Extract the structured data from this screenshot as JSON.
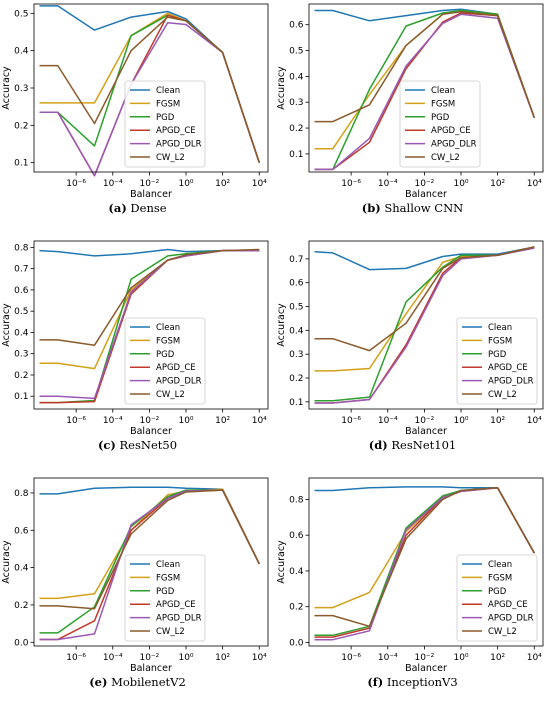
{
  "chart_data": [
    {
      "type": "line",
      "caption_label": "(a)",
      "caption_name": "Dense",
      "xlabel": "Balancer",
      "ylabel": "Accuracy",
      "x": [
        1e-08,
        1e-07,
        1e-05,
        0.001,
        0.1,
        1,
        100,
        10000
      ],
      "ylim": [
        0.075,
        0.525
      ],
      "yticks": [
        "0.1",
        "0.2",
        "0.3",
        "0.4",
        "0.5"
      ],
      "ytick_values": [
        0.1,
        0.2,
        0.3,
        0.4,
        0.5
      ],
      "legend_position": "lower-center",
      "series": [
        {
          "name": "Clean",
          "color": "#1f77b4",
          "values": [
            0.52,
            0.52,
            0.455,
            0.49,
            0.505,
            0.485,
            0.395,
            0.1
          ]
        },
        {
          "name": "FGSM",
          "color": "#d4a017",
          "values": [
            0.26,
            0.26,
            0.26,
            0.44,
            0.5,
            0.48,
            0.395,
            0.1
          ]
        },
        {
          "name": "PGD",
          "color": "#2ca02c",
          "values": [
            0.235,
            0.235,
            0.145,
            0.44,
            0.495,
            0.48,
            0.395,
            0.1
          ]
        },
        {
          "name": "APGD_CE",
          "color": "#c0392b",
          "values": [
            0.235,
            0.235,
            0.065,
            0.31,
            0.495,
            0.48,
            0.395,
            0.1
          ]
        },
        {
          "name": "APGD_DLR",
          "color": "#9b59b6",
          "values": [
            0.235,
            0.235,
            0.065,
            0.31,
            0.475,
            0.47,
            0.395,
            0.1
          ]
        },
        {
          "name": "CW_L2",
          "color": "#8b5a2b",
          "values": [
            0.36,
            0.36,
            0.205,
            0.4,
            0.49,
            0.48,
            0.395,
            0.1
          ]
        }
      ]
    },
    {
      "type": "line",
      "caption_label": "(b)",
      "caption_name": "Shallow CNN",
      "xlabel": "Balancer",
      "ylabel": "Accuracy",
      "x": [
        1e-08,
        1e-07,
        1e-05,
        0.001,
        0.1,
        1,
        100,
        10000
      ],
      "ylim": [
        0.03,
        0.68
      ],
      "yticks": [
        "0.1",
        "0.2",
        "0.3",
        "0.4",
        "0.5",
        "0.6"
      ],
      "ytick_values": [
        0.1,
        0.2,
        0.3,
        0.4,
        0.5,
        0.6
      ],
      "legend_position": "lower-center",
      "series": [
        {
          "name": "Clean",
          "color": "#1f77b4",
          "values": [
            0.655,
            0.655,
            0.615,
            0.635,
            0.655,
            0.66,
            0.64,
            0.24
          ]
        },
        {
          "name": "FGSM",
          "color": "#d4a017",
          "values": [
            0.12,
            0.12,
            0.33,
            0.52,
            0.64,
            0.655,
            0.64,
            0.24
          ]
        },
        {
          "name": "PGD",
          "color": "#2ca02c",
          "values": [
            0.04,
            0.04,
            0.35,
            0.595,
            0.645,
            0.655,
            0.64,
            0.24
          ]
        },
        {
          "name": "APGD_CE",
          "color": "#c0392b",
          "values": [
            0.04,
            0.04,
            0.145,
            0.43,
            0.61,
            0.645,
            0.635,
            0.24
          ]
        },
        {
          "name": "APGD_DLR",
          "color": "#9b59b6",
          "values": [
            0.04,
            0.04,
            0.16,
            0.44,
            0.605,
            0.64,
            0.625,
            0.24
          ]
        },
        {
          "name": "CW_L2",
          "color": "#8b5a2b",
          "values": [
            0.225,
            0.225,
            0.29,
            0.52,
            0.64,
            0.65,
            0.635,
            0.24
          ]
        }
      ]
    },
    {
      "type": "line",
      "caption_label": "(c)",
      "caption_name": "ResNet50",
      "xlabel": "Balancer",
      "ylabel": "Accuracy",
      "x": [
        1e-08,
        1e-07,
        1e-05,
        0.001,
        0.1,
        1,
        100,
        10000
      ],
      "ylim": [
        0.04,
        0.83
      ],
      "yticks": [
        "0.1",
        "0.2",
        "0.3",
        "0.4",
        "0.5",
        "0.6",
        "0.7",
        "0.8"
      ],
      "ytick_values": [
        0.1,
        0.2,
        0.3,
        0.4,
        0.5,
        0.6,
        0.7,
        0.8
      ],
      "legend_position": "lower-center",
      "series": [
        {
          "name": "Clean",
          "color": "#1f77b4",
          "values": [
            0.785,
            0.78,
            0.76,
            0.77,
            0.79,
            0.78,
            0.785,
            0.785
          ]
        },
        {
          "name": "FGSM",
          "color": "#d4a017",
          "values": [
            0.255,
            0.255,
            0.23,
            0.6,
            0.74,
            0.76,
            0.785,
            0.785
          ]
        },
        {
          "name": "PGD",
          "color": "#2ca02c",
          "values": [
            0.07,
            0.07,
            0.08,
            0.65,
            0.76,
            0.77,
            0.785,
            0.785
          ]
        },
        {
          "name": "APGD_CE",
          "color": "#c0392b",
          "values": [
            0.07,
            0.07,
            0.075,
            0.58,
            0.74,
            0.76,
            0.785,
            0.785
          ]
        },
        {
          "name": "APGD_DLR",
          "color": "#9b59b6",
          "values": [
            0.1,
            0.1,
            0.09,
            0.59,
            0.74,
            0.76,
            0.785,
            0.785
          ]
        },
        {
          "name": "CW_L2",
          "color": "#8b5a2b",
          "values": [
            0.365,
            0.365,
            0.34,
            0.61,
            0.74,
            0.765,
            0.785,
            0.79
          ]
        }
      ]
    },
    {
      "type": "line",
      "caption_label": "(d)",
      "caption_name": "ResNet101",
      "xlabel": "Balancer",
      "ylabel": "Accuracy",
      "x": [
        1e-08,
        1e-07,
        1e-05,
        0.001,
        0.1,
        1,
        100,
        10000
      ],
      "ylim": [
        0.07,
        0.775
      ],
      "yticks": [
        "0.1",
        "0.2",
        "0.3",
        "0.4",
        "0.5",
        "0.6",
        "0.7"
      ],
      "ytick_values": [
        0.1,
        0.2,
        0.3,
        0.4,
        0.5,
        0.6,
        0.7
      ],
      "legend_position": "lower-right",
      "series": [
        {
          "name": "Clean",
          "color": "#1f77b4",
          "values": [
            0.73,
            0.725,
            0.655,
            0.66,
            0.71,
            0.72,
            0.72,
            0.75
          ]
        },
        {
          "name": "FGSM",
          "color": "#d4a017",
          "values": [
            0.23,
            0.23,
            0.24,
            0.47,
            0.685,
            0.71,
            0.715,
            0.75
          ]
        },
        {
          "name": "PGD",
          "color": "#2ca02c",
          "values": [
            0.105,
            0.105,
            0.12,
            0.52,
            0.665,
            0.715,
            0.715,
            0.75
          ]
        },
        {
          "name": "APGD_CE",
          "color": "#c0392b",
          "values": [
            0.095,
            0.095,
            0.11,
            0.34,
            0.64,
            0.705,
            0.715,
            0.75
          ]
        },
        {
          "name": "APGD_DLR",
          "color": "#9b59b6",
          "values": [
            0.095,
            0.095,
            0.11,
            0.33,
            0.63,
            0.7,
            0.715,
            0.745
          ]
        },
        {
          "name": "CW_L2",
          "color": "#8b5a2b",
          "values": [
            0.365,
            0.365,
            0.315,
            0.43,
            0.66,
            0.705,
            0.715,
            0.75
          ]
        }
      ]
    },
    {
      "type": "line",
      "caption_label": "(e)",
      "caption_name": "MobilenetV2",
      "xlabel": "Balancer",
      "ylabel": "Accuracy",
      "x": [
        1e-08,
        1e-07,
        1e-05,
        0.001,
        0.1,
        1,
        100,
        10000
      ],
      "ylim": [
        -0.02,
        0.88
      ],
      "yticks": [
        "0.0",
        "0.2",
        "0.4",
        "0.6",
        "0.8"
      ],
      "ytick_values": [
        0.0,
        0.2,
        0.4,
        0.6,
        0.8
      ],
      "legend_position": "lower-center",
      "series": [
        {
          "name": "Clean",
          "color": "#1f77b4",
          "values": [
            0.795,
            0.795,
            0.825,
            0.83,
            0.83,
            0.825,
            0.82,
            0.42
          ]
        },
        {
          "name": "FGSM",
          "color": "#d4a017",
          "values": [
            0.235,
            0.235,
            0.26,
            0.6,
            0.79,
            0.81,
            0.82,
            0.42
          ]
        },
        {
          "name": "PGD",
          "color": "#2ca02c",
          "values": [
            0.05,
            0.05,
            0.19,
            0.62,
            0.78,
            0.815,
            0.815,
            0.42
          ]
        },
        {
          "name": "APGD_CE",
          "color": "#c0392b",
          "values": [
            0.015,
            0.015,
            0.115,
            0.6,
            0.77,
            0.81,
            0.815,
            0.42
          ]
        },
        {
          "name": "APGD_DLR",
          "color": "#9b59b6",
          "values": [
            0.015,
            0.015,
            0.045,
            0.63,
            0.77,
            0.81,
            0.815,
            0.42
          ]
        },
        {
          "name": "CW_L2",
          "color": "#8b5a2b",
          "values": [
            0.195,
            0.195,
            0.18,
            0.58,
            0.76,
            0.805,
            0.815,
            0.42
          ]
        }
      ]
    },
    {
      "type": "line",
      "caption_label": "(f)",
      "caption_name": "InceptionV3",
      "xlabel": "Balancer",
      "ylabel": "Accuracy",
      "x": [
        1e-08,
        1e-07,
        1e-05,
        0.001,
        0.1,
        1,
        100,
        10000
      ],
      "ylim": [
        -0.02,
        0.92
      ],
      "yticks": [
        "0.0",
        "0.2",
        "0.4",
        "0.6",
        "0.8"
      ],
      "ytick_values": [
        0.0,
        0.2,
        0.4,
        0.6,
        0.8
      ],
      "legend_position": "lower-right",
      "series": [
        {
          "name": "Clean",
          "color": "#1f77b4",
          "values": [
            0.85,
            0.85,
            0.865,
            0.87,
            0.87,
            0.865,
            0.865,
            0.5
          ]
        },
        {
          "name": "FGSM",
          "color": "#d4a017",
          "values": [
            0.195,
            0.195,
            0.28,
            0.62,
            0.81,
            0.85,
            0.865,
            0.5
          ]
        },
        {
          "name": "PGD",
          "color": "#2ca02c",
          "values": [
            0.04,
            0.04,
            0.09,
            0.64,
            0.82,
            0.85,
            0.865,
            0.5
          ]
        },
        {
          "name": "APGD_CE",
          "color": "#c0392b",
          "values": [
            0.03,
            0.03,
            0.08,
            0.6,
            0.81,
            0.845,
            0.865,
            0.5
          ]
        },
        {
          "name": "APGD_DLR",
          "color": "#9b59b6",
          "values": [
            0.015,
            0.015,
            0.065,
            0.63,
            0.81,
            0.845,
            0.865,
            0.5
          ]
        },
        {
          "name": "CW_L2",
          "color": "#8b5a2b",
          "values": [
            0.15,
            0.15,
            0.09,
            0.58,
            0.8,
            0.85,
            0.865,
            0.5
          ]
        }
      ]
    }
  ],
  "xticks": [
    "10⁻⁶",
    "10⁻⁴",
    "10⁻²",
    "10⁰",
    "10²",
    "10⁴"
  ],
  "xtick_values": [
    1e-06,
    0.0001,
    0.01,
    1,
    100,
    10000
  ]
}
